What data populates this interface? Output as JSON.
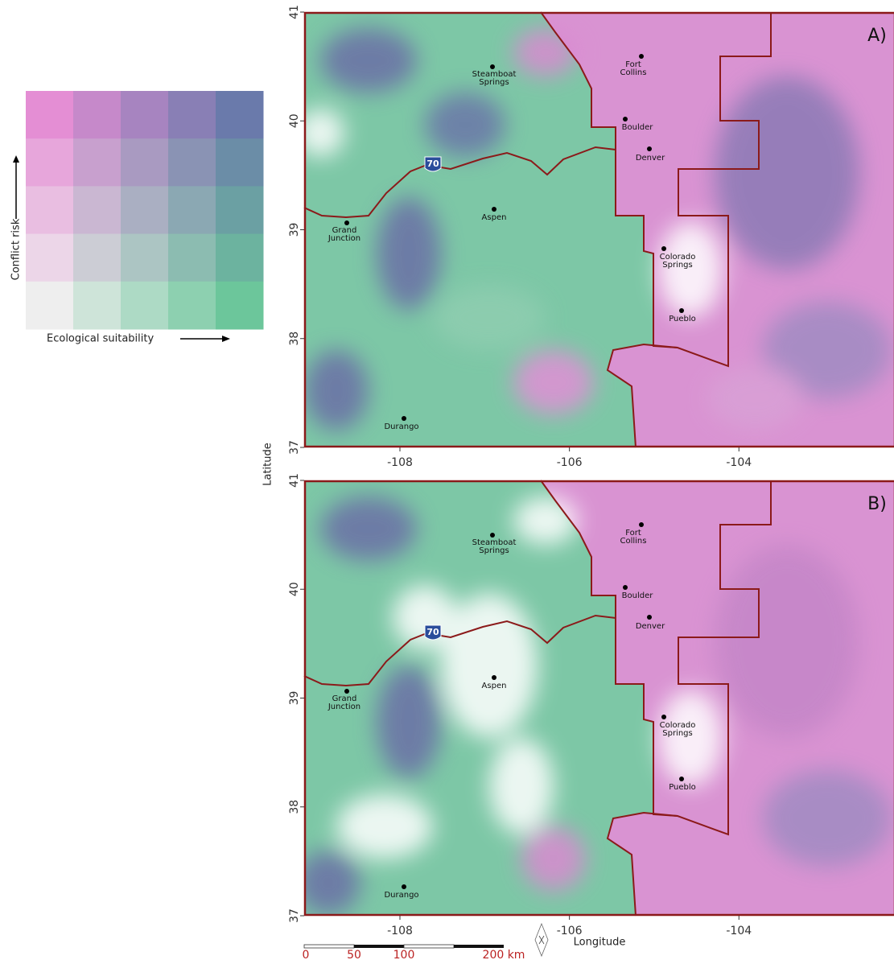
{
  "legend": {
    "y_label": "Conflict risk",
    "x_label": "Ecological suitability"
  },
  "axes": {
    "y_label": "Latitude",
    "x_label": "Longitude",
    "xlim": [
      -109.13,
      -102.17
    ],
    "ylim": [
      37,
      41
    ],
    "xticks": [
      -108,
      -106,
      -104
    ],
    "yticks": [
      37,
      38,
      39,
      40,
      41
    ]
  },
  "panels": [
    {
      "label": "A)"
    },
    {
      "label": "B)"
    }
  ],
  "cities": [
    {
      "name": [
        "Steamboat",
        "Springs"
      ]
    },
    {
      "name": [
        "Fort",
        "Collins"
      ]
    },
    {
      "name": [
        "Boulder"
      ]
    },
    {
      "name": [
        "Denver"
      ]
    },
    {
      "name": [
        "Aspen"
      ]
    },
    {
      "name": [
        "Grand",
        "Junction"
      ]
    },
    {
      "name": [
        "Colorado",
        "Springs"
      ]
    },
    {
      "name": [
        "Pueblo"
      ]
    },
    {
      "name": [
        "Durango"
      ]
    }
  ],
  "highway": "70",
  "scale_bar": {
    "labels": [
      "0",
      "50",
      "100",
      "200 km"
    ]
  }
}
